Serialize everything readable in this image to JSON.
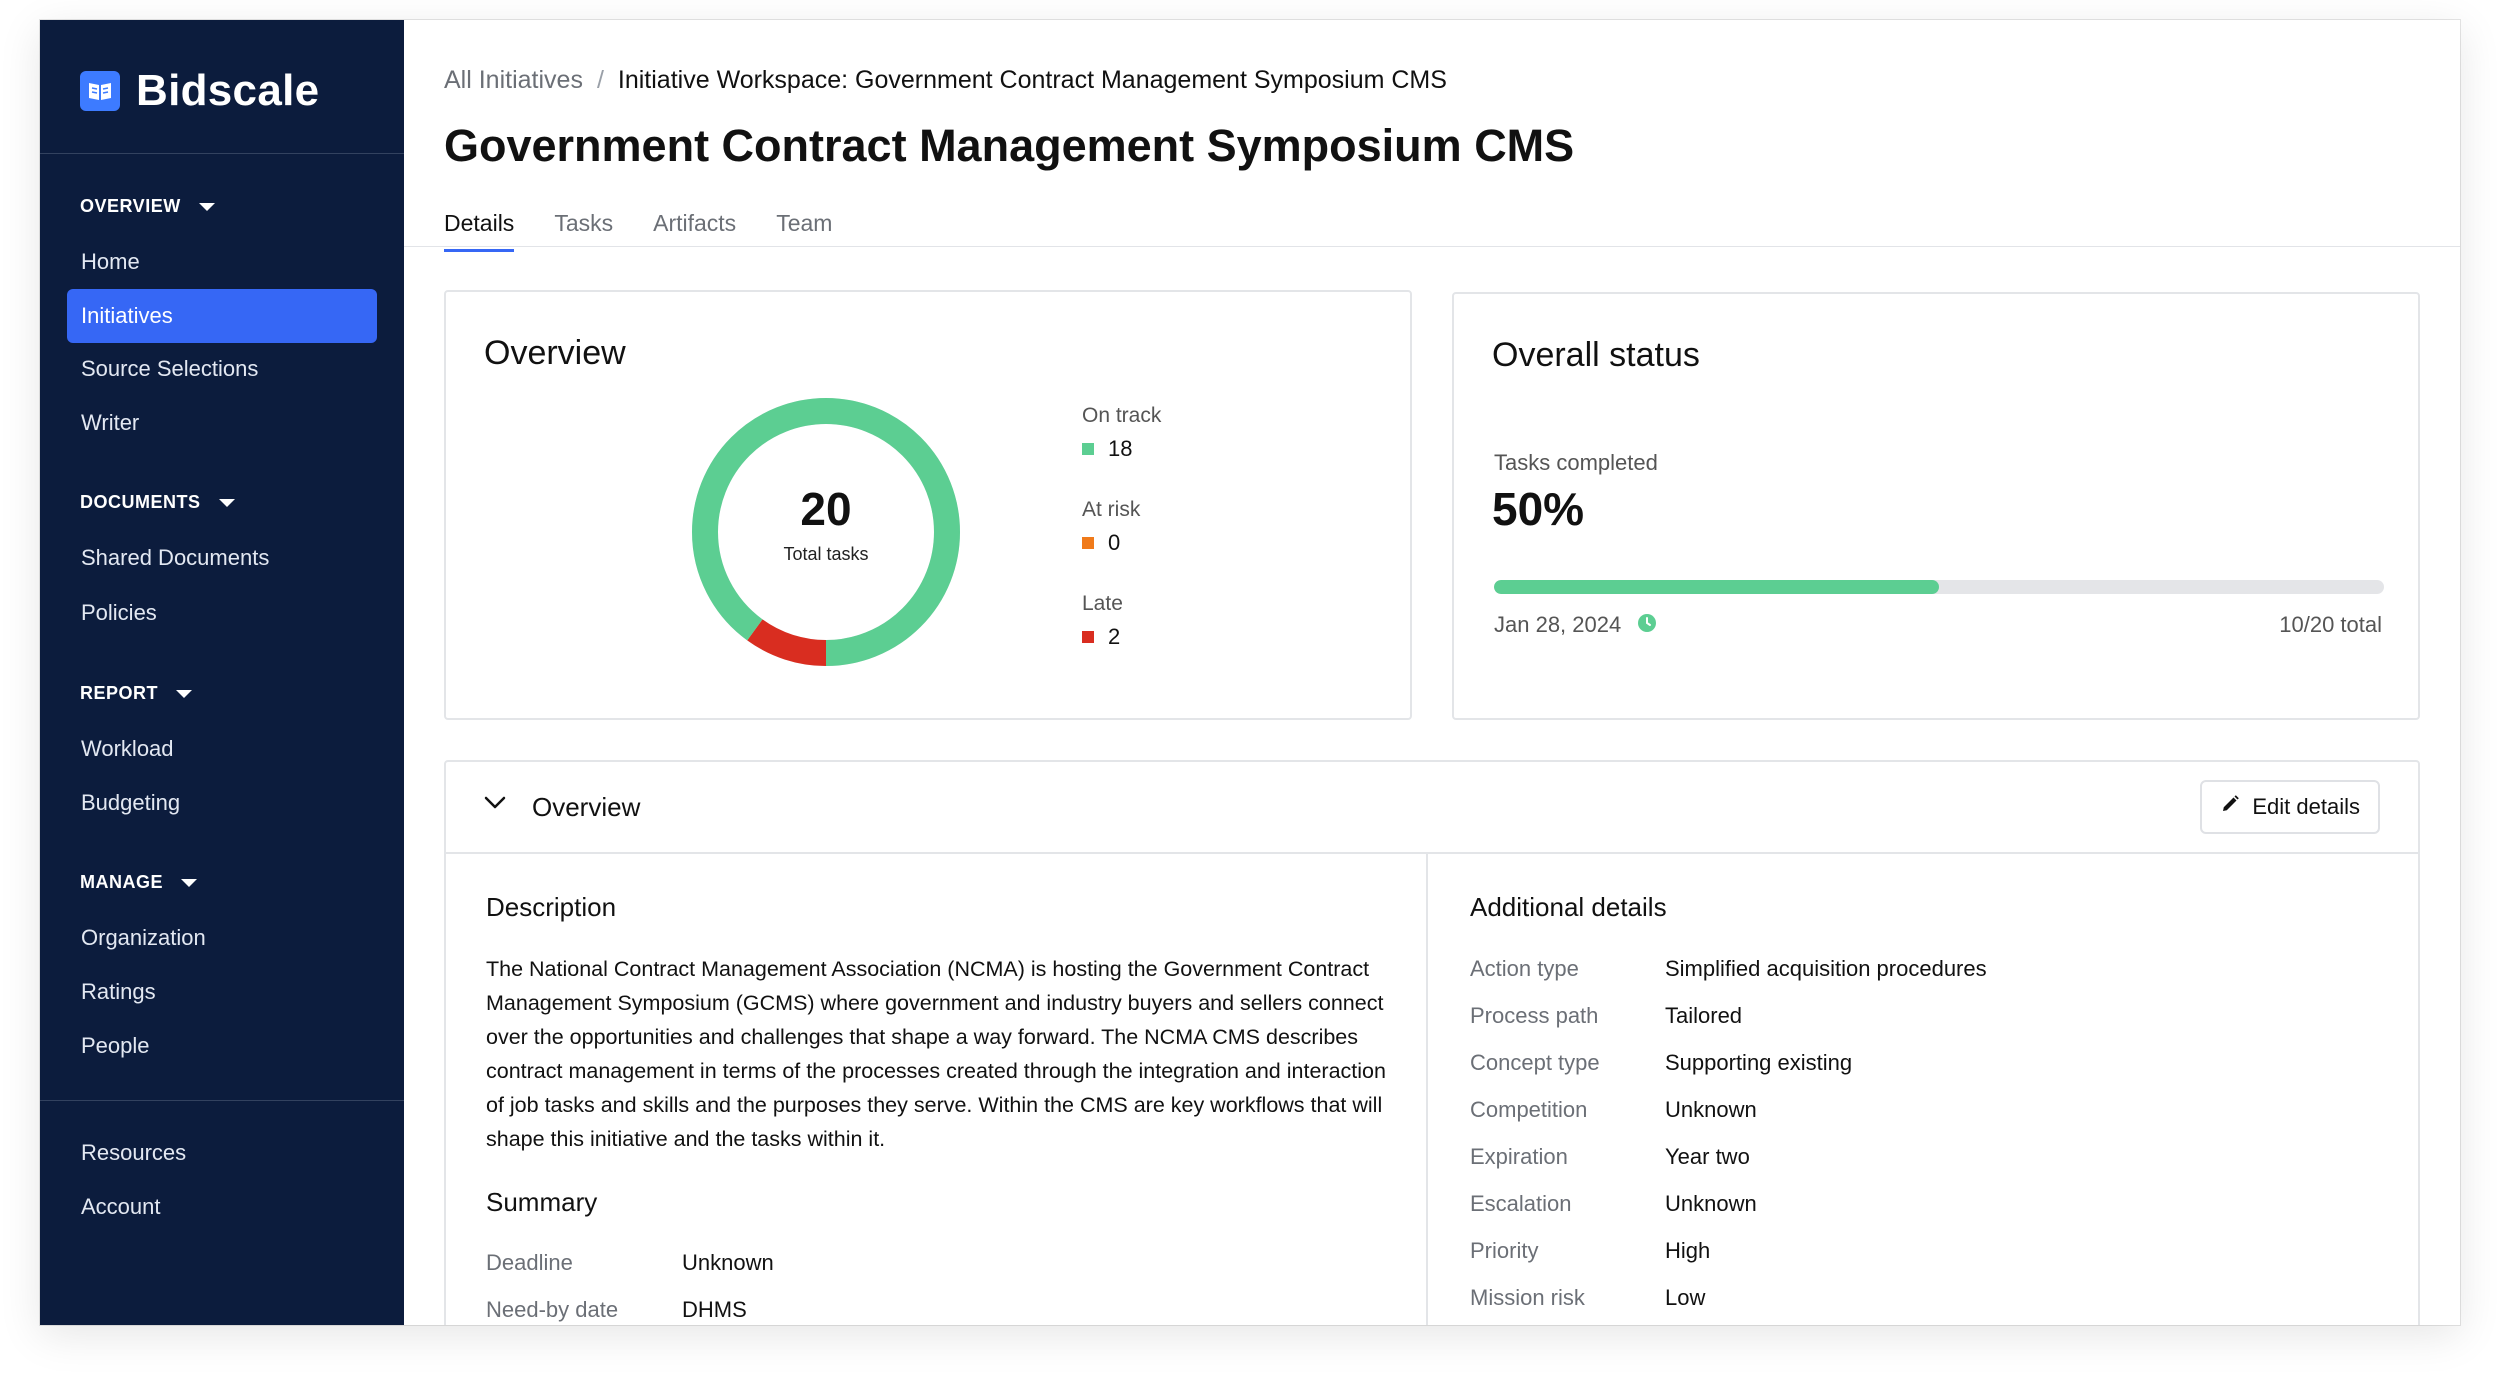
{
  "brand": {
    "name": "Bidscale"
  },
  "sidebar": {
    "sections": [
      {
        "title": "OVERVIEW",
        "items": [
          "Home",
          "Initiatives",
          "Source Selections",
          "Writer"
        ]
      },
      {
        "title": "DOCUMENTS",
        "items": [
          "Shared Documents",
          "Policies"
        ]
      },
      {
        "title": "REPORT",
        "items": [
          "Workload",
          "Budgeting"
        ]
      },
      {
        "title": "MANAGE",
        "items": [
          "Organization",
          "Ratings",
          "People"
        ]
      }
    ],
    "footer_items": [
      "Resources",
      "Account"
    ],
    "active_item": "Initiatives"
  },
  "breadcrumb": {
    "parent": "All Initiatives",
    "separator": "/",
    "current": "Initiative Workspace: Government Contract Management Symposium CMS"
  },
  "page_title": "Government Contract Management Symposium CMS",
  "tabs": [
    "Details",
    "Tasks",
    "Artifacts",
    "Team"
  ],
  "active_tab": "Details",
  "overview_card": {
    "title": "Overview",
    "total": "20",
    "total_label": "Total tasks",
    "legend": [
      {
        "label": "On track",
        "value": "18",
        "color": "#5cce92"
      },
      {
        "label": "At risk",
        "value": "0",
        "color": "#f07a1a"
      },
      {
        "label": "Late",
        "value": "2",
        "color": "#d92d20"
      }
    ]
  },
  "status_card": {
    "title": "Overall status",
    "metric_label": "Tasks completed",
    "metric_value": "50%",
    "progress_fraction": 0.5,
    "date": "Jan 28, 2024",
    "total_text": "10/20 total"
  },
  "details": {
    "section_title": "Overview",
    "edit_label": "Edit details",
    "description_title": "Description",
    "description": "The National Contract Management Association (NCMA) is hosting the Government Contract Management Symposium (GCMS) where government and industry buyers and sellers connect over the opportunities and challenges that shape a way forward. The NCMA CMS describes contract management in terms of the processes created through the integration and interaction of job tasks and skills and the purposes they serve. Within the CMS are key workflows that will shape this initiative and the tasks within it.",
    "summary_title": "Summary",
    "summary": [
      {
        "label": "Deadline",
        "value": "Unknown"
      },
      {
        "label": "Need-by date",
        "value": "DHMS"
      }
    ],
    "additional_title": "Additional details",
    "additional": [
      {
        "label": "Action type",
        "value": "Simplified acquisition procedures"
      },
      {
        "label": "Process path",
        "value": "Tailored"
      },
      {
        "label": "Concept type",
        "value": "Supporting existing"
      },
      {
        "label": "Competition",
        "value": "Unknown"
      },
      {
        "label": "Expiration",
        "value": "Year two"
      },
      {
        "label": "Escalation",
        "value": "Unknown"
      },
      {
        "label": "Priority",
        "value": "High"
      },
      {
        "label": "Mission risk",
        "value": "Low"
      }
    ]
  }
}
